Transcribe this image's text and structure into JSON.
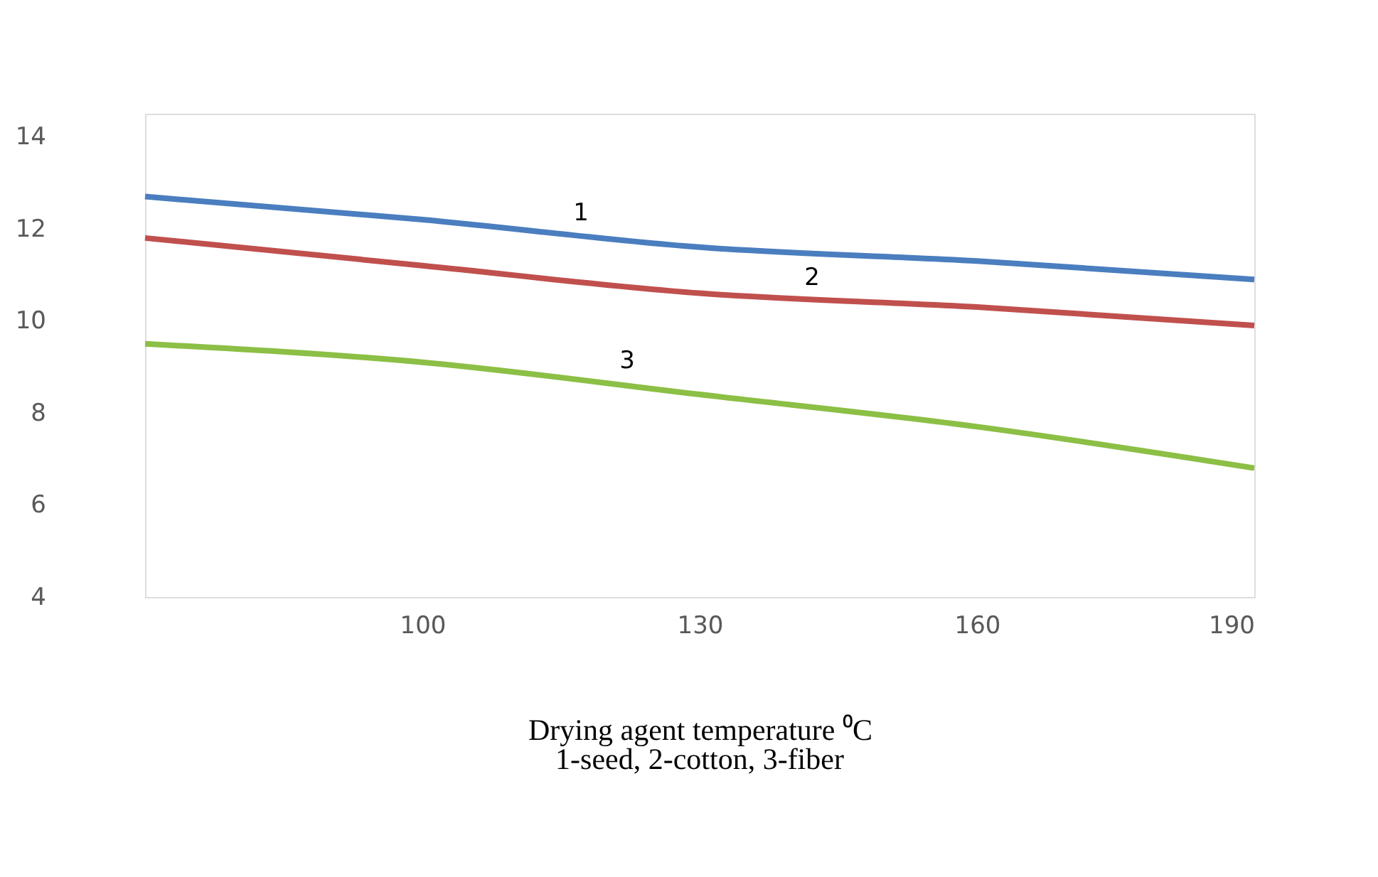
{
  "chart_data": {
    "type": "line",
    "xlabel": "Drying agent temperature ⁰C",
    "x": [
      70,
      100,
      130,
      160,
      190
    ],
    "series": [
      {
        "color": "#4a7ebf",
        "values": [
          12.7,
          12.2,
          11.6,
          11.3,
          10.9
        ]
      },
      {
        "color": "#c0504d",
        "values": [
          11.8,
          11.2,
          10.6,
          10.3,
          9.9
        ]
      },
      {
        "color": "#8cbf45",
        "values": [
          9.5,
          9.1,
          8.4,
          7.7,
          6.8
        ]
      }
    ],
    "xlim": [
      70,
      190
    ],
    "xticks": [
      100,
      130,
      160,
      190
    ],
    "ylim": [
      4,
      14.5
    ],
    "yticks": [
      4,
      6,
      8,
      10,
      12,
      14
    ],
    "grid": false,
    "legend": false,
    "marker": "none",
    "line_style": "solid",
    "annotations": [
      {
        "text": "1",
        "x": 115,
        "y": 11.9
      },
      {
        "text": "2",
        "x": 140,
        "y": 10.5
      },
      {
        "text": "3",
        "x": 120,
        "y": 8.7
      },
      "1-seed, 2-cotton, 3-fiber"
    ]
  }
}
